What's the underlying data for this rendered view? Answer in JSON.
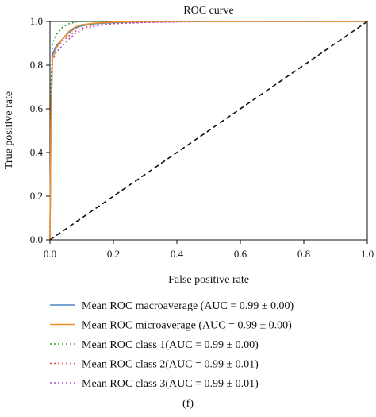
{
  "chart_data": {
    "type": "line",
    "title": "ROC curve",
    "xlabel": "False positive rate",
    "ylabel": "True positive rate",
    "xlim": [
      0.0,
      1.0
    ],
    "ylim": [
      0.0,
      1.0
    ],
    "xticks": [
      "0.0",
      "0.2",
      "0.4",
      "0.6",
      "0.8",
      "1.0"
    ],
    "yticks": [
      "0.0",
      "0.2",
      "0.4",
      "0.6",
      "0.8",
      "1.0"
    ],
    "grid": false,
    "legend_position": "below",
    "series": [
      {
        "name": "Mean ROC macroaverage (AUC = 0.99 ± 0.00)",
        "color": "#4a86c2",
        "style": "solid",
        "points": [
          [
            0,
            0
          ],
          [
            0.003,
            0.6
          ],
          [
            0.008,
            0.85
          ],
          [
            0.02,
            0.89
          ],
          [
            0.04,
            0.92
          ],
          [
            0.06,
            0.95
          ],
          [
            0.08,
            0.97
          ],
          [
            0.1,
            0.98
          ],
          [
            0.14,
            0.99
          ],
          [
            0.2,
            0.995
          ],
          [
            0.3,
            1.0
          ],
          [
            1.0,
            1.0
          ]
        ]
      },
      {
        "name": "Mean ROC microaverage (AUC = 0.99 ± 0.00)",
        "color": "#f28e2b",
        "style": "solid",
        "points": [
          [
            0,
            0
          ],
          [
            0.003,
            0.55
          ],
          [
            0.008,
            0.83
          ],
          [
            0.02,
            0.88
          ],
          [
            0.04,
            0.92
          ],
          [
            0.06,
            0.955
          ],
          [
            0.08,
            0.975
          ],
          [
            0.1,
            0.985
          ],
          [
            0.14,
            0.992
          ],
          [
            0.2,
            0.997
          ],
          [
            0.3,
            1.0
          ],
          [
            1.0,
            1.0
          ]
        ]
      },
      {
        "name": "Mean ROC class 1(AUC = 0.99 ± 0.00)",
        "color": "#2ca02c",
        "style": "dotted",
        "points": [
          [
            0,
            0
          ],
          [
            0.003,
            0.7
          ],
          [
            0.008,
            0.9
          ],
          [
            0.02,
            0.94
          ],
          [
            0.04,
            0.975
          ],
          [
            0.06,
            0.99
          ],
          [
            0.08,
            0.997
          ],
          [
            0.1,
            1.0
          ],
          [
            1.0,
            1.0
          ]
        ]
      },
      {
        "name": "Mean ROC class 2(AUC = 0.99 ± 0.01)",
        "color": "#e8424b",
        "style": "dotted",
        "points": [
          [
            0,
            0
          ],
          [
            0.003,
            0.6
          ],
          [
            0.008,
            0.86
          ],
          [
            0.02,
            0.88
          ],
          [
            0.04,
            0.91
          ],
          [
            0.06,
            0.935
          ],
          [
            0.08,
            0.955
          ],
          [
            0.1,
            0.97
          ],
          [
            0.14,
            0.982
          ],
          [
            0.2,
            0.99
          ],
          [
            0.3,
            0.996
          ],
          [
            0.5,
            1.0
          ],
          [
            1.0,
            1.0
          ]
        ]
      },
      {
        "name": "Mean ROC class 3(AUC = 0.99 ± 0.01)",
        "color": "#a04bd1",
        "style": "dotted",
        "points": [
          [
            0,
            0
          ],
          [
            0.003,
            0.55
          ],
          [
            0.008,
            0.82
          ],
          [
            0.02,
            0.86
          ],
          [
            0.04,
            0.89
          ],
          [
            0.06,
            0.92
          ],
          [
            0.08,
            0.945
          ],
          [
            0.1,
            0.96
          ],
          [
            0.14,
            0.978
          ],
          [
            0.2,
            0.99
          ],
          [
            0.3,
            0.996
          ],
          [
            0.5,
            1.0
          ],
          [
            1.0,
            1.0
          ]
        ]
      }
    ],
    "reference_line": {
      "color": "#111111",
      "style": "dashed",
      "points": [
        [
          0,
          0
        ],
        [
          1,
          1
        ]
      ]
    }
  },
  "caption": "(f)"
}
